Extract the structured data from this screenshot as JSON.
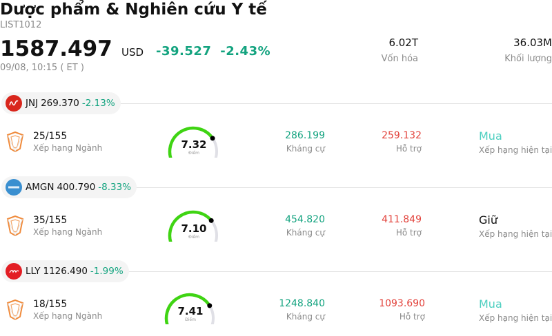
{
  "header": {
    "title": "Dược phẩm & Nghiên cứu Y tế",
    "code": "LIST1012",
    "price": "1587.497",
    "currency": "USD",
    "change": "-39.527",
    "change_pct": "-2.43%",
    "time": "09/08, 10:15  ( ET )",
    "market_cap_value": "6.02T",
    "market_cap_label": "Vốn hóa",
    "volume_value": "36.03M",
    "volume_label": "Khối lượng"
  },
  "labels": {
    "rank": "Xếp hạng Ngành",
    "score": "Điểm",
    "resistance": "Kháng cự",
    "support": "Hỗ trợ",
    "rating": "Xếp hạng hiện tại"
  },
  "colors": {
    "up_green": "#13a37f",
    "support_red": "#e2413a",
    "gauge_green": "#3fd413",
    "gauge_track": "#e0e0e6",
    "buy_teal": "#4dcfc0"
  },
  "stocks": [
    {
      "ticker": "JNJ",
      "price": "269.370",
      "change_pct": "-2.13%",
      "logo": "jnj-logo",
      "rank": "25/155",
      "score": "7.32",
      "score_value": 7.32,
      "resistance": "286.199",
      "support": "259.132",
      "rating": "Mua",
      "rating_color": "#4dcfc0"
    },
    {
      "ticker": "AMGN",
      "price": "400.790",
      "change_pct": "-8.33%",
      "logo": "amgn-logo",
      "rank": "35/155",
      "score": "7.10",
      "score_value": 7.1,
      "resistance": "454.820",
      "support": "411.849",
      "rating": "Giữ",
      "rating_color": "#111111"
    },
    {
      "ticker": "LLY",
      "price": "1126.490",
      "change_pct": "-1.99%",
      "logo": "lly-logo",
      "rank": "18/155",
      "score": "7.41",
      "score_value": 7.41,
      "resistance": "1248.840",
      "support": "1093.690",
      "rating": "Mua",
      "rating_color": "#4dcfc0"
    }
  ]
}
